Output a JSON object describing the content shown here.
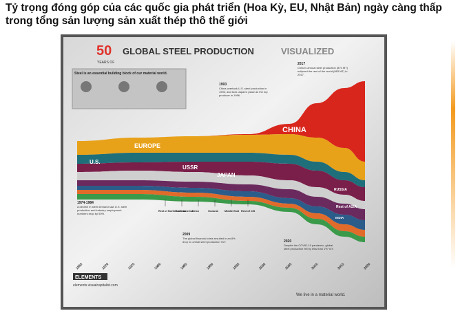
{
  "title": "Tỷ trọng đóng góp của các quốc gia phát triển (Hoa Kỳ, EU, Nhật Bản) ngày càng thấp trong tổng sản lượng sản xuất thép thô thế giới",
  "infographic": {
    "number": "50",
    "years_of": "YEARS OF",
    "heading": "GLOBAL STEEL PRODUCTION",
    "heading_accent": "VISUALIZED",
    "intro": "Steel is an essential building block of our material world.",
    "regions": [
      "CHINA",
      "EUROPE",
      "U.S.",
      "USSR",
      "JAPAN",
      "RUSSIA",
      "Rest of ASIA",
      "INDIA"
    ],
    "bottom_regions": [
      "Rest of North America",
      "South America",
      "Africa",
      "Oceania",
      "Middle East",
      "Rest of CIS"
    ],
    "years": [
      "1965",
      "1970",
      "1975",
      "1980",
      "1985",
      "1990",
      "1995",
      "2000",
      "2005",
      "2010",
      "2015",
      "2020"
    ],
    "annotations": [
      {
        "year": "1993",
        "text": "China overtook U.S. steel production in 1993, and took Japan's place as the top producer in 1996."
      },
      {
        "year": "2017",
        "text": "China's annual steel production (870 MT) eclipsed the rest of the world (863 MT) in 2017."
      },
      {
        "year": "1974-1984",
        "text": "A decline in steel demand saw U.S. steel production and industry employment numbers drop by 50%."
      },
      {
        "year": "2009",
        "text": "The global financial crisis resulted in an 8% drop in overall steel production YoY."
      },
      {
        "year": "2020",
        "text": "Despite the COVID-19 pandemic, global steel production fell by less than 1% YoY."
      }
    ],
    "brand": "ELEMENTS",
    "url": "elements.visualcapitalist.com",
    "tagline": "We live in a material world."
  }
}
